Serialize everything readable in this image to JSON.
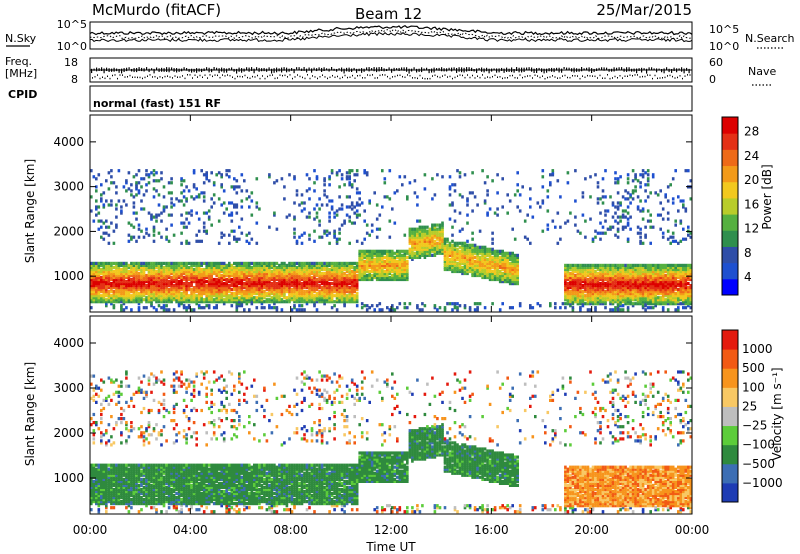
{
  "header": {
    "station": "McMurdo (fitACF)",
    "beam": "Beam 12",
    "date": "25/Mar/2015"
  },
  "noise_panel": {
    "left_label": "N.Sky",
    "right_label": "N.Search",
    "left_ticks": [
      "10^5",
      "10^0"
    ],
    "right_ticks": [
      "10^5",
      "10^0"
    ]
  },
  "freq_panel": {
    "left_label_1": "Freq.",
    "left_label_2": "[MHz]",
    "right_label": "Nave",
    "left_ticks": [
      "18",
      "8"
    ],
    "right_ticks": [
      "60",
      "0"
    ]
  },
  "cpid_panel": {
    "label": "CPID",
    "text": "normal (fast) 151 RF"
  },
  "chart_data": [
    {
      "type": "heatmap",
      "name": "power",
      "ylabel": "Slant Range [km]",
      "ylim": [
        200,
        4600
      ],
      "yticks": [
        "1000",
        "2000",
        "3000",
        "4000"
      ],
      "colorbar_label": "Power [dB]",
      "colorbar_ticks": [
        "4",
        "8",
        "12",
        "16",
        "20",
        "24",
        "28"
      ],
      "colorbar_colors": [
        "#0000ff",
        "#1e50d0",
        "#2f4ea8",
        "#2f8f4e",
        "#55b040",
        "#b8cc2a",
        "#f2c81e",
        "#f39a19",
        "#ee6a18",
        "#e43016",
        "#dd0000"
      ],
      "grid": false
    },
    {
      "type": "heatmap",
      "name": "velocity",
      "ylabel": "Slant Range [km]",
      "ylim": [
        200,
        4600
      ],
      "yticks": [
        "1000",
        "2000",
        "3000",
        "4000"
      ],
      "colorbar_label": "Velocity [m s⁻¹]",
      "colorbar_ticks": [
        "1000",
        "500",
        "100",
        "25",
        "−25",
        "−100",
        "−500",
        "−1000"
      ],
      "colorbar_colors": [
        "#1e3cb4",
        "#3c6eb4",
        "#2f8a3e",
        "#5ccc3a",
        "#bebebe",
        "#f8c864",
        "#f7941d",
        "#f25a14",
        "#e41a0e"
      ],
      "grid": false
    }
  ],
  "xaxis": {
    "ticks": [
      "00:00",
      "04:00",
      "08:00",
      "12:00",
      "16:00",
      "20:00",
      "00:00"
    ],
    "xlabel": "Time UT"
  }
}
